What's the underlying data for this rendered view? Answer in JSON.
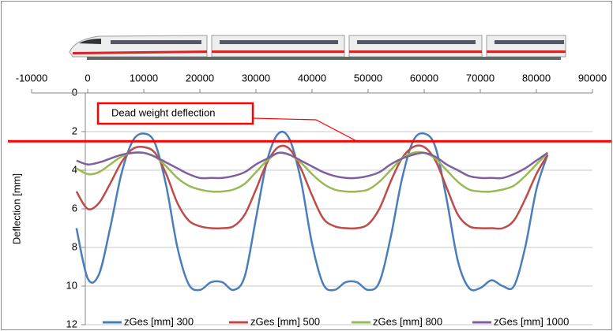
{
  "chart_data": {
    "type": "line",
    "ylabel": "Deflection [mm]",
    "x": [
      -2000,
      0,
      2000,
      4000,
      6000,
      8000,
      10000,
      12000,
      14000,
      16000,
      18000,
      20000,
      22000,
      24000,
      26000,
      28000,
      30000,
      32000,
      34000,
      36000,
      38000,
      40000,
      42000,
      44000,
      46000,
      48000,
      50000,
      52000,
      54000,
      56000,
      58000,
      60000,
      62000,
      64000,
      66000,
      68000,
      70000,
      72000,
      74000,
      76000,
      78000,
      80000,
      82000
    ],
    "series": [
      {
        "name": "zGes [mm] 300",
        "color": "#4a7ebb",
        "values": [
          7.0,
          9.6,
          9.4,
          7.0,
          4.2,
          2.5,
          2.1,
          2.6,
          4.8,
          8.0,
          9.9,
          10.2,
          9.8,
          9.8,
          10.2,
          9.5,
          6.5,
          3.5,
          2.1,
          2.4,
          4.5,
          7.8,
          9.9,
          10.2,
          9.8,
          9.8,
          10.2,
          9.8,
          7.5,
          4.5,
          2.5,
          2.1,
          2.8,
          5.5,
          8.7,
          10.1,
          10.1,
          9.7,
          10.0,
          10.0,
          8.0,
          5.0,
          3.2
        ]
      },
      {
        "name": "zGes [mm] 500",
        "color": "#be4b48",
        "values": [
          5.1,
          6.0,
          5.7,
          4.7,
          3.6,
          2.9,
          2.8,
          3.1,
          4.2,
          5.7,
          6.6,
          6.9,
          7.0,
          7.0,
          6.9,
          6.3,
          5.0,
          3.6,
          2.8,
          2.9,
          3.9,
          5.3,
          6.5,
          6.9,
          7.0,
          7.0,
          6.8,
          6.0,
          4.6,
          3.4,
          2.8,
          2.8,
          3.5,
          4.9,
          6.3,
          6.9,
          7.0,
          7.0,
          7.0,
          6.6,
          5.5,
          4.2,
          3.2
        ]
      },
      {
        "name": "zGes [mm] 800",
        "color": "#98b954",
        "values": [
          3.9,
          4.2,
          4.1,
          3.7,
          3.3,
          3.1,
          3.1,
          3.3,
          3.8,
          4.4,
          4.8,
          5.0,
          5.1,
          5.1,
          5.0,
          4.7,
          4.1,
          3.5,
          3.1,
          3.2,
          3.6,
          4.2,
          4.7,
          5.0,
          5.1,
          5.1,
          5.0,
          4.6,
          4.0,
          3.4,
          3.1,
          3.1,
          3.4,
          4.0,
          4.6,
          5.0,
          5.1,
          5.1,
          5.0,
          4.8,
          4.3,
          3.7,
          3.1
        ]
      },
      {
        "name": "zGes [mm] 1000",
        "color": "#7d60a0",
        "values": [
          3.5,
          3.7,
          3.6,
          3.4,
          3.2,
          3.1,
          3.1,
          3.3,
          3.6,
          3.9,
          4.2,
          4.4,
          4.4,
          4.4,
          4.3,
          4.1,
          3.7,
          3.4,
          3.1,
          3.2,
          3.5,
          3.8,
          4.1,
          4.3,
          4.4,
          4.4,
          4.3,
          4.1,
          3.7,
          3.4,
          3.2,
          3.1,
          3.3,
          3.7,
          4.0,
          4.3,
          4.4,
          4.4,
          4.4,
          4.2,
          3.9,
          3.5,
          3.1
        ]
      }
    ],
    "xlim": [
      -10000,
      90000
    ],
    "xticks": [
      -10000,
      0,
      10000,
      20000,
      30000,
      40000,
      50000,
      60000,
      70000,
      80000,
      90000
    ],
    "x_axis_position": "top",
    "ylim": [
      0,
      12
    ],
    "yticks": [
      0,
      2,
      4,
      6,
      8,
      10,
      12
    ],
    "y_inverted": true,
    "grid": true,
    "legend": "bottom",
    "annotation": {
      "text": "Dead weight deflection",
      "y": 2.5,
      "color": "#ff0000"
    }
  }
}
